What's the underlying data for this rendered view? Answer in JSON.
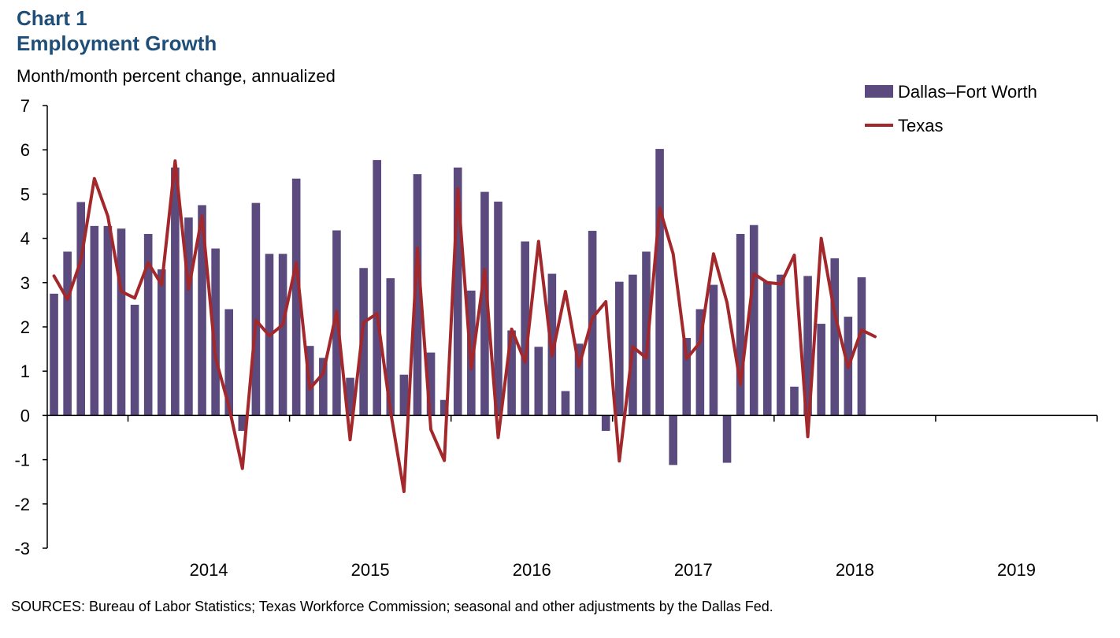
{
  "header": {
    "chart_number": "Chart 1",
    "title": "Employment Growth",
    "y_axis_label": "Month/month percent change, annualized"
  },
  "footer": {
    "sources": "SOURCES: Bureau of Labor Statistics; Texas Workforce Commission;  seasonal and other adjustments by the Dallas Fed."
  },
  "chart_data": {
    "type": "bar",
    "title": "Employment Growth",
    "ylabel": "Month/month percent change, annualized",
    "ylim": [
      -3,
      7
    ],
    "y_ticks": [
      7,
      6,
      5,
      4,
      3,
      2,
      1,
      0,
      -1,
      -2,
      -3
    ],
    "x_ticks": [
      "2014",
      "2015",
      "2016",
      "2017",
      "2018",
      "2019"
    ],
    "x_start": "2013-07",
    "x_end": "2019-12",
    "grid": false,
    "legend_position": "top-right",
    "colors": {
      "bars": "#5b4a7e",
      "line": "#a3282b",
      "title": "#1f4e79"
    },
    "x": [
      "2013-07",
      "2013-08",
      "2013-09",
      "2013-10",
      "2013-11",
      "2013-12",
      "2014-01",
      "2014-02",
      "2014-03",
      "2014-04",
      "2014-05",
      "2014-06",
      "2014-07",
      "2014-08",
      "2014-09",
      "2014-10",
      "2014-11",
      "2014-12",
      "2015-01",
      "2015-02",
      "2015-03",
      "2015-04",
      "2015-05",
      "2015-06",
      "2015-07",
      "2015-08",
      "2015-09",
      "2015-10",
      "2015-11",
      "2015-12",
      "2016-01",
      "2016-02",
      "2016-03",
      "2016-04",
      "2016-05",
      "2016-06",
      "2016-07",
      "2016-08",
      "2016-09",
      "2016-10",
      "2016-11",
      "2016-12",
      "2017-01",
      "2017-02",
      "2017-03",
      "2017-04",
      "2017-05",
      "2017-06",
      "2017-07",
      "2017-08",
      "2017-09",
      "2017-10",
      "2017-11",
      "2017-12",
      "2018-01",
      "2018-02",
      "2018-03",
      "2018-04",
      "2018-05",
      "2018-06",
      "2018-07",
      "2018-08"
    ],
    "series": [
      {
        "name": "Dallas–Fort Worth",
        "kind": "bar",
        "values": [
          2.75,
          3.7,
          4.82,
          4.28,
          4.28,
          4.22,
          2.5,
          4.1,
          3.3,
          5.6,
          4.47,
          4.75,
          3.77,
          2.4,
          -0.35,
          4.8,
          3.65,
          3.65,
          5.35,
          1.57,
          1.3,
          4.18,
          0.85,
          3.33,
          5.77,
          3.1,
          0.92,
          5.45,
          1.42,
          0.35,
          5.6,
          2.82,
          5.05,
          4.83,
          1.92,
          3.93,
          1.55,
          3.2,
          0.55,
          1.62,
          4.17,
          -0.35,
          3.02,
          3.18,
          3.7,
          6.02,
          -1.12,
          1.75,
          2.4,
          2.95,
          -1.07,
          4.1,
          4.3,
          3.02,
          3.18,
          0.65,
          3.15,
          2.07,
          3.55,
          2.23,
          3.12,
          null
        ]
      },
      {
        "name": "Texas",
        "kind": "line",
        "values": [
          3.15,
          2.62,
          3.5,
          5.35,
          4.5,
          2.8,
          2.65,
          3.45,
          2.95,
          5.75,
          2.85,
          4.5,
          1.3,
          0.2,
          -1.2,
          2.15,
          1.8,
          2.05,
          3.45,
          0.6,
          0.95,
          2.35,
          -0.55,
          2.1,
          2.3,
          0.1,
          -1.72,
          3.78,
          -0.32,
          -1.02,
          5.12,
          1.05,
          3.3,
          -0.5,
          1.95,
          1.2,
          3.93,
          1.35,
          2.8,
          1.1,
          2.2,
          2.57,
          -1.03,
          1.55,
          1.3,
          4.68,
          3.65,
          1.28,
          1.65,
          3.65,
          2.55,
          0.7,
          3.2,
          3.0,
          2.97,
          3.62,
          -0.48,
          4.0,
          2.3,
          1.08,
          1.93,
          1.78
        ]
      }
    ]
  }
}
